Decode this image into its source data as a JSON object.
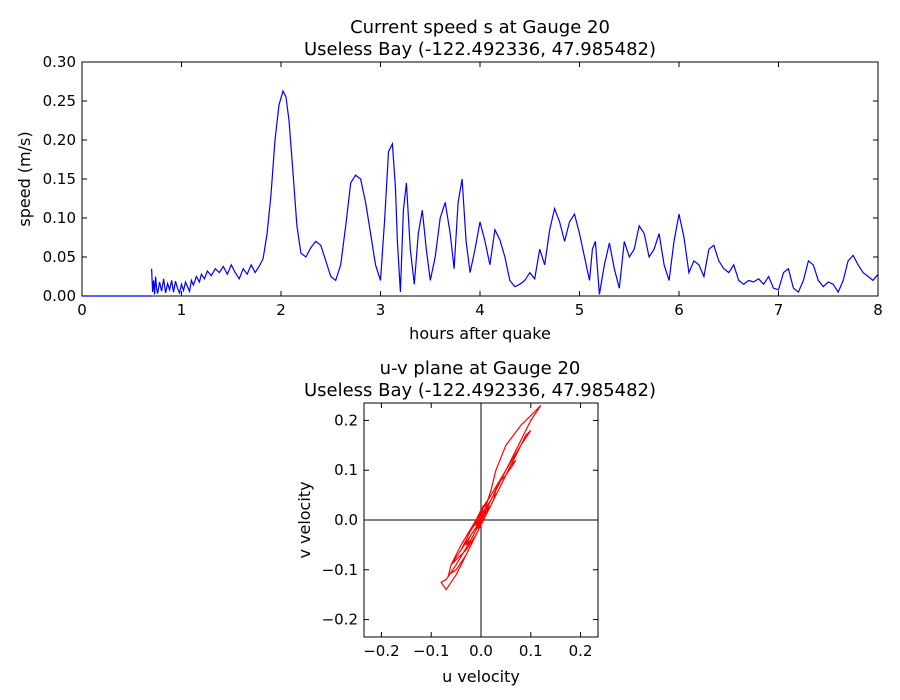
{
  "chart_data": [
    {
      "type": "line",
      "title_line1": "Current speed s at Gauge 20",
      "title_line2": "Useless Bay  (-122.492336, 47.985482)",
      "xlabel": "hours after quake",
      "ylabel": "speed (m/s)",
      "xlim": [
        0,
        8
      ],
      "ylim": [
        0,
        0.3
      ],
      "xticks": [
        0,
        1,
        2,
        3,
        4,
        5,
        6,
        7,
        8
      ],
      "xtick_labels": [
        "0",
        "1",
        "2",
        "3",
        "4",
        "5",
        "6",
        "7",
        "8"
      ],
      "yticks": [
        0,
        0.05,
        0.1,
        0.15,
        0.2,
        0.25,
        0.3
      ],
      "ytick_labels": [
        "0.00",
        "0.05",
        "0.10",
        "0.15",
        "0.20",
        "0.25",
        "0.30"
      ],
      "grid": false,
      "series": [
        {
          "color": "#0000ff",
          "x": [
            0.7,
            0.71,
            0.72,
            0.73,
            0.74,
            0.75,
            0.76,
            0.78,
            0.8,
            0.82,
            0.84,
            0.86,
            0.88,
            0.9,
            0.92,
            0.94,
            0.96,
            0.98,
            1.0,
            1.02,
            1.04,
            1.06,
            1.08,
            1.1,
            1.12,
            1.15,
            1.18,
            1.2,
            1.23,
            1.26,
            1.3,
            1.34,
            1.38,
            1.42,
            1.46,
            1.5,
            1.54,
            1.58,
            1.62,
            1.66,
            1.7,
            1.74,
            1.78,
            1.82,
            1.86,
            1.9,
            1.94,
            1.98,
            2.02,
            2.05,
            2.08,
            2.12,
            2.16,
            2.2,
            2.25,
            2.3,
            2.35,
            2.4,
            2.45,
            2.5,
            2.55,
            2.6,
            2.65,
            2.7,
            2.75,
            2.8,
            2.85,
            2.9,
            2.95,
            3.0,
            3.04,
            3.08,
            3.12,
            3.15,
            3.17,
            3.2,
            3.23,
            3.26,
            3.3,
            3.34,
            3.38,
            3.42,
            3.46,
            3.5,
            3.55,
            3.6,
            3.65,
            3.7,
            3.74,
            3.78,
            3.82,
            3.86,
            3.9,
            3.95,
            4.0,
            4.05,
            4.1,
            4.15,
            4.2,
            4.25,
            4.3,
            4.35,
            4.4,
            4.45,
            4.5,
            4.55,
            4.6,
            4.65,
            4.7,
            4.75,
            4.8,
            4.85,
            4.9,
            4.95,
            5.0,
            5.05,
            5.1,
            5.13,
            5.16,
            5.2,
            5.25,
            5.3,
            5.35,
            5.4,
            5.45,
            5.5,
            5.55,
            5.6,
            5.65,
            5.7,
            5.75,
            5.8,
            5.85,
            5.9,
            5.95,
            6.0,
            6.05,
            6.1,
            6.15,
            6.2,
            6.25,
            6.3,
            6.35,
            6.4,
            6.45,
            6.5,
            6.55,
            6.6,
            6.65,
            6.7,
            6.75,
            6.8,
            6.85,
            6.9,
            6.95,
            7.0,
            7.05,
            7.1,
            7.15,
            7.2,
            7.25,
            7.3,
            7.35,
            7.4,
            7.45,
            7.5,
            7.55,
            7.6,
            7.65,
            7.7,
            7.75,
            7.8,
            7.85,
            7.9,
            7.95,
            8.0
          ],
          "y": [
            0.035,
            0.005,
            0.02,
            0.002,
            0.025,
            0.01,
            0.003,
            0.018,
            0.006,
            0.022,
            0.004,
            0.016,
            0.008,
            0.02,
            0.005,
            0.019,
            0.01,
            0.004,
            0.015,
            0.007,
            0.018,
            0.012,
            0.006,
            0.02,
            0.014,
            0.025,
            0.018,
            0.028,
            0.022,
            0.032,
            0.026,
            0.035,
            0.03,
            0.038,
            0.028,
            0.04,
            0.03,
            0.022,
            0.035,
            0.028,
            0.04,
            0.03,
            0.038,
            0.048,
            0.08,
            0.13,
            0.2,
            0.245,
            0.263,
            0.255,
            0.225,
            0.16,
            0.09,
            0.055,
            0.05,
            0.062,
            0.07,
            0.065,
            0.045,
            0.025,
            0.02,
            0.04,
            0.09,
            0.145,
            0.155,
            0.15,
            0.12,
            0.08,
            0.04,
            0.02,
            0.095,
            0.185,
            0.195,
            0.14,
            0.07,
            0.005,
            0.11,
            0.145,
            0.06,
            0.015,
            0.08,
            0.11,
            0.06,
            0.02,
            0.05,
            0.1,
            0.12,
            0.08,
            0.035,
            0.12,
            0.15,
            0.07,
            0.03,
            0.06,
            0.095,
            0.07,
            0.04,
            0.085,
            0.072,
            0.05,
            0.02,
            0.012,
            0.015,
            0.02,
            0.03,
            0.022,
            0.06,
            0.04,
            0.085,
            0.112,
            0.095,
            0.07,
            0.095,
            0.105,
            0.08,
            0.05,
            0.02,
            0.06,
            0.07,
            0.002,
            0.04,
            0.068,
            0.035,
            0.01,
            0.07,
            0.05,
            0.06,
            0.09,
            0.08,
            0.05,
            0.06,
            0.08,
            0.04,
            0.02,
            0.07,
            0.105,
            0.075,
            0.03,
            0.045,
            0.04,
            0.025,
            0.06,
            0.065,
            0.045,
            0.035,
            0.03,
            0.04,
            0.02,
            0.015,
            0.02,
            0.018,
            0.022,
            0.015,
            0.025,
            0.01,
            0.008,
            0.03,
            0.035,
            0.01,
            0.005,
            0.02,
            0.045,
            0.04,
            0.02,
            0.012,
            0.018,
            0.015,
            0.005,
            0.02,
            0.045,
            0.052,
            0.04,
            0.03,
            0.025,
            0.02,
            0.028
          ]
        }
      ]
    },
    {
      "type": "line",
      "title_line1": "u-v plane at Gauge 20",
      "title_line2": "Useless Bay  (-122.492336, 47.985482)",
      "xlabel": "u velocity",
      "ylabel": "v velocity",
      "xlim": [
        -0.235,
        0.235
      ],
      "ylim": [
        -0.235,
        0.235
      ],
      "xticks": [
        -0.2,
        -0.1,
        0.0,
        0.1,
        0.2
      ],
      "xtick_labels": [
        "−0.2",
        "−0.1",
        "0.0",
        "0.1",
        "0.2"
      ],
      "yticks": [
        -0.2,
        -0.1,
        0.0,
        0.1,
        0.2
      ],
      "ytick_labels": [
        "−0.2",
        "−0.1",
        "0.0",
        "0.1",
        "0.2"
      ],
      "grid": false,
      "series": [
        {
          "color": "#ff0000",
          "u": [
            0.0,
            0.01,
            -0.01,
            0.005,
            -0.005,
            0.02,
            0.03,
            0.05,
            0.08,
            0.11,
            0.12,
            0.1,
            0.07,
            0.04,
            0.01,
            -0.02,
            -0.05,
            -0.07,
            -0.08,
            -0.07,
            -0.05,
            -0.03,
            -0.01,
            0.01,
            0.03,
            0.05,
            0.07,
            0.09,
            0.1,
            0.08,
            0.05,
            0.02,
            -0.01,
            -0.04,
            -0.06,
            -0.065,
            -0.05,
            -0.03,
            -0.01,
            0.01,
            0.03,
            0.05,
            0.06,
            0.07,
            0.05,
            0.03,
            0.01,
            -0.01,
            -0.03,
            -0.05,
            -0.06,
            -0.04,
            -0.02,
            0.0,
            0.02,
            0.04,
            0.05,
            0.04,
            0.02,
            0.0,
            -0.02,
            -0.04,
            -0.035,
            -0.02,
            0.0,
            0.02,
            0.03,
            0.025,
            0.01,
            -0.01,
            -0.02,
            -0.03,
            -0.02,
            0.0,
            0.01,
            0.02,
            0.015,
            0.0,
            -0.01,
            0.0
          ],
          "v": [
            0.0,
            0.02,
            -0.01,
            0.03,
            -0.02,
            0.06,
            0.1,
            0.15,
            0.19,
            0.22,
            0.23,
            0.2,
            0.14,
            0.08,
            0.02,
            -0.04,
            -0.09,
            -0.12,
            -0.125,
            -0.14,
            -0.11,
            -0.07,
            -0.03,
            0.01,
            0.05,
            0.09,
            0.13,
            0.17,
            0.18,
            0.15,
            0.1,
            0.05,
            0.0,
            -0.05,
            -0.09,
            -0.11,
            -0.1,
            -0.07,
            -0.03,
            0.01,
            0.05,
            0.09,
            0.11,
            0.12,
            0.09,
            0.05,
            0.01,
            -0.03,
            -0.06,
            -0.08,
            -0.09,
            -0.06,
            -0.02,
            0.02,
            0.05,
            0.08,
            0.09,
            0.07,
            0.03,
            0.0,
            -0.03,
            -0.06,
            -0.05,
            -0.02,
            0.01,
            0.04,
            0.06,
            0.04,
            0.01,
            -0.02,
            -0.04,
            -0.05,
            -0.03,
            0.0,
            0.02,
            0.03,
            0.02,
            -0.01,
            -0.01,
            0.0
          ]
        }
      ]
    }
  ]
}
